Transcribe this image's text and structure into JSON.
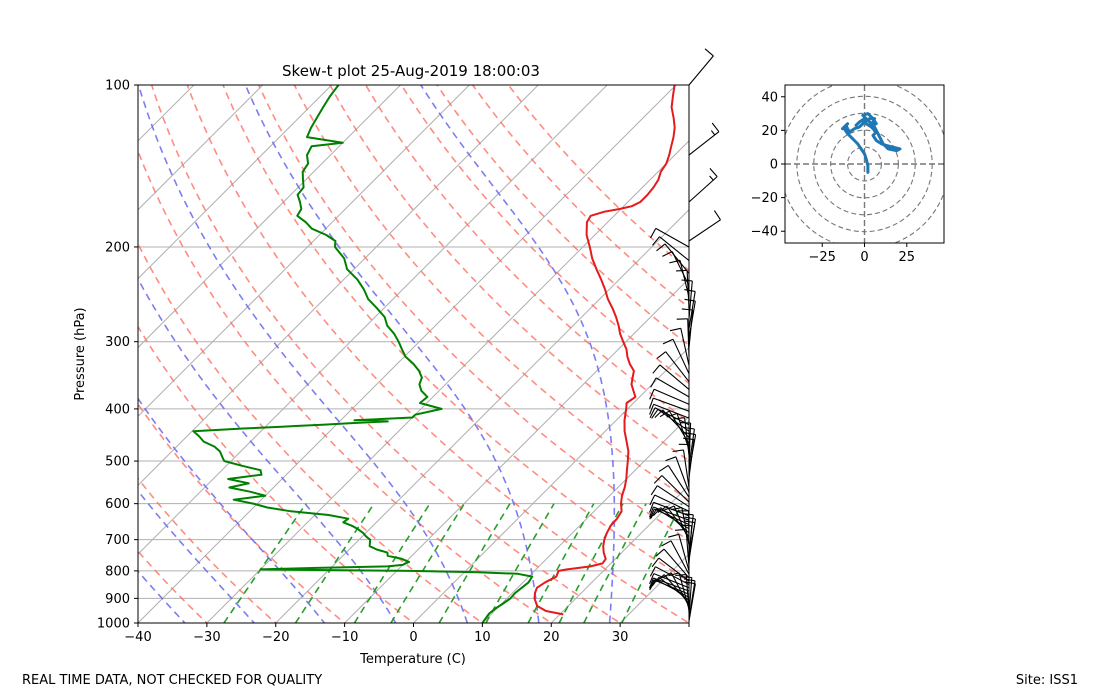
{
  "chart_data": [
    {
      "type": "skew-t",
      "title": "Skew-t plot 25-Aug-2019 18:00:03",
      "xlabel": "Temperature (C)",
      "ylabel": "Pressure (hPa)",
      "xlim": [
        -40,
        40
      ],
      "ylim": [
        1000,
        100
      ],
      "y_scale": "log",
      "x_ticks": [
        -40,
        -30,
        -20,
        -10,
        0,
        10,
        20,
        30
      ],
      "y_ticks": [
        100,
        200,
        300,
        400,
        500,
        600,
        700,
        800,
        900,
        1000
      ],
      "grid": true,
      "skew_degrees": 45,
      "series": [
        {
          "role": "temperature",
          "color": "#e41a1c",
          "points": [
            [
              964,
              20.5
            ],
            [
              950,
              17.5
            ],
            [
              930,
              15.5
            ],
            [
              900,
              14.0
            ],
            [
              880,
              13.3
            ],
            [
              860,
              12.8
            ],
            [
              840,
              13.2
            ],
            [
              820,
              14.0
            ],
            [
              800,
              13.5
            ],
            [
              795,
              14.5
            ],
            [
              785,
              17.5
            ],
            [
              775,
              18.8
            ],
            [
              760,
              18.6
            ],
            [
              740,
              17.4
            ],
            [
              720,
              16.4
            ],
            [
              700,
              15.6
            ],
            [
              680,
              15.0
            ],
            [
              660,
              14.5
            ],
            [
              640,
              14.4
            ],
            [
              620,
              14.0
            ],
            [
              600,
              12.8
            ],
            [
              580,
              11.8
            ],
            [
              560,
              11.0
            ],
            [
              540,
              10.0
            ],
            [
              520,
              8.8
            ],
            [
              500,
              7.6
            ],
            [
              480,
              6.3
            ],
            [
              460,
              4.6
            ],
            [
              440,
              2.8
            ],
            [
              420,
              1.2
            ],
            [
              400,
              -0.2
            ],
            [
              390,
              -1.0
            ],
            [
              380,
              -0.6
            ],
            [
              370,
              -1.8
            ],
            [
              360,
              -3.0
            ],
            [
              350,
              -3.8
            ],
            [
              340,
              -4.6
            ],
            [
              330,
              -6.2
            ],
            [
              320,
              -7.6
            ],
            [
              310,
              -8.8
            ],
            [
              300,
              -10.4
            ],
            [
              290,
              -12.0
            ],
            [
              280,
              -13.4
            ],
            [
              270,
              -15.0
            ],
            [
              260,
              -16.8
            ],
            [
              250,
              -18.8
            ],
            [
              240,
              -20.6
            ],
            [
              230,
              -22.6
            ],
            [
              220,
              -24.8
            ],
            [
              210,
              -27.0
            ],
            [
              200,
              -29.0
            ],
            [
              190,
              -31.2
            ],
            [
              180,
              -33.0
            ],
            [
              175,
              -33.4
            ],
            [
              172,
              -32.0
            ],
            [
              170,
              -30.2
            ],
            [
              168,
              -28.8
            ],
            [
              165,
              -28.2
            ],
            [
              160,
              -28.2
            ],
            [
              155,
              -28.4
            ],
            [
              150,
              -28.8
            ],
            [
              145,
              -29.6
            ],
            [
              140,
              -30.0
            ],
            [
              135,
              -30.8
            ],
            [
              130,
              -31.8
            ],
            [
              125,
              -32.8
            ],
            [
              120,
              -34.0
            ],
            [
              115,
              -35.6
            ],
            [
              110,
              -37.4
            ],
            [
              105,
              -38.8
            ],
            [
              100,
              -40.2
            ]
          ]
        },
        {
          "role": "dewpoint",
          "color": "#008000",
          "points": [
            [
              1000,
              10.0
            ],
            [
              980,
              9.8
            ],
            [
              960,
              9.6
            ],
            [
              940,
              9.8
            ],
            [
              920,
              10.2
            ],
            [
              900,
              10.5
            ],
            [
              880,
              10.4
            ],
            [
              860,
              10.6
            ],
            [
              840,
              10.8
            ],
            [
              820,
              10.5
            ],
            [
              810,
              8.0
            ],
            [
              805,
              2.0
            ],
            [
              800,
              -8.0
            ],
            [
              797,
              -22.0
            ],
            [
              795,
              -30.0
            ],
            [
              790,
              -22.0
            ],
            [
              785,
              -12.0
            ],
            [
              780,
              -10.0
            ],
            [
              770,
              -9.5
            ],
            [
              760,
              -11.0
            ],
            [
              750,
              -13.5
            ],
            [
              740,
              -14.0
            ],
            [
              730,
              -16.0
            ],
            [
              720,
              -17.5
            ],
            [
              700,
              -18.4
            ],
            [
              690,
              -19.5
            ],
            [
              680,
              -20.4
            ],
            [
              670,
              -21.6
            ],
            [
              660,
              -23.0
            ],
            [
              650,
              -24.8
            ],
            [
              640,
              -24.6
            ],
            [
              630,
              -28.0
            ],
            [
              620,
              -34.0
            ],
            [
              610,
              -38.0
            ],
            [
              600,
              -40.6
            ],
            [
              590,
              -44.0
            ],
            [
              580,
              -40.0
            ],
            [
              570,
              -42.8
            ],
            [
              560,
              -46.4
            ],
            [
              550,
              -44.2
            ],
            [
              540,
              -47.8
            ],
            [
              530,
              -43.6
            ],
            [
              520,
              -44.4
            ],
            [
              510,
              -47.8
            ],
            [
              500,
              -51.0
            ],
            [
              490,
              -52.0
            ],
            [
              480,
              -53.0
            ],
            [
              470,
              -54.5
            ],
            [
              460,
              -56.8
            ],
            [
              450,
              -58.2
            ],
            [
              440,
              -59.8
            ],
            [
              435,
              -53.0
            ],
            [
              432,
              -48.0
            ],
            [
              430,
              -45.0
            ],
            [
              428,
              -42.0
            ],
            [
              425,
              -38.0
            ],
            [
              422,
              -33.0
            ],
            [
              420,
              -38.0
            ],
            [
              415,
              -30.0
            ],
            [
              410,
              -30.0
            ],
            [
              400,
              -27.0
            ],
            [
              390,
              -31.0
            ],
            [
              380,
              -30.8
            ],
            [
              370,
              -32.6
            ],
            [
              360,
              -33.8
            ],
            [
              350,
              -34.4
            ],
            [
              340,
              -35.8
            ],
            [
              330,
              -37.6
            ],
            [
              320,
              -39.8
            ],
            [
              310,
              -41.4
            ],
            [
              300,
              -43.0
            ],
            [
              290,
              -44.8
            ],
            [
              280,
              -47.0
            ],
            [
              270,
              -48.6
            ],
            [
              260,
              -51.0
            ],
            [
              250,
              -53.6
            ],
            [
              240,
              -55.6
            ],
            [
              230,
              -58.0
            ],
            [
              220,
              -61.0
            ],
            [
              210,
              -63.0
            ],
            [
              200,
              -66.0
            ],
            [
              195,
              -66.8
            ],
            [
              190,
              -69.0
            ],
            [
              185,
              -72.0
            ],
            [
              180,
              -73.8
            ],
            [
              175,
              -76.0
            ],
            [
              170,
              -76.4
            ],
            [
              165,
              -77.6
            ],
            [
              160,
              -79.0
            ],
            [
              155,
              -79.2
            ],
            [
              150,
              -80.4
            ],
            [
              145,
              -81.6
            ],
            [
              140,
              -82.0
            ],
            [
              135,
              -83.4
            ],
            [
              130,
              -84.0
            ],
            [
              128,
              -80.0
            ],
            [
              125,
              -86.0
            ],
            [
              120,
              -86.8
            ],
            [
              115,
              -87.4
            ],
            [
              110,
              -88.0
            ],
            [
              105,
              -88.6
            ],
            [
              100,
              -89.0
            ]
          ]
        }
      ],
      "overlays": {
        "dry_adiabats_color": "#ff6f61",
        "moist_adiabats_color": "#6666ee",
        "mixing_ratio_color": "#2a9d2a",
        "isotherm_color": "#b0b0b0"
      },
      "wind_barbs_color": "#000000"
    },
    {
      "type": "hodograph",
      "xlim": [
        -47,
        47
      ],
      "ylim": [
        -47,
        47
      ],
      "x_ticks": [
        -25,
        0,
        25
      ],
      "y_ticks": [
        -40,
        -20,
        0,
        20,
        40
      ],
      "rings": [
        10,
        20,
        30,
        40,
        50
      ],
      "color": "#1f77b4",
      "points": [
        [
          2,
          -5
        ],
        [
          2,
          -1
        ],
        [
          1,
          3
        ],
        [
          0,
          6
        ],
        [
          -2,
          9
        ],
        [
          -4,
          12
        ],
        [
          -6,
          14
        ],
        [
          -8,
          16
        ],
        [
          -10,
          18
        ],
        [
          -12,
          21
        ],
        [
          -10,
          24
        ],
        [
          -13,
          21
        ],
        [
          -11,
          23
        ],
        [
          -9,
          19
        ],
        [
          -6,
          21
        ],
        [
          -3,
          22
        ],
        [
          0,
          25
        ],
        [
          3,
          27
        ],
        [
          6,
          27
        ],
        [
          4,
          23
        ],
        [
          7,
          24
        ],
        [
          5,
          27
        ],
        [
          2,
          30
        ],
        [
          -1,
          29
        ],
        [
          3,
          25
        ],
        [
          6,
          22
        ],
        [
          9,
          16
        ],
        [
          11,
          12
        ],
        [
          14,
          9
        ],
        [
          19,
          8
        ],
        [
          21,
          9
        ],
        [
          17,
          10
        ],
        [
          13,
          11
        ],
        [
          10,
          12
        ],
        [
          7,
          14
        ],
        [
          5,
          17
        ],
        [
          7,
          19
        ],
        [
          4,
          22
        ],
        [
          1,
          24
        ],
        [
          0,
          27
        ],
        [
          -3,
          25
        ],
        [
          -5,
          23
        ]
      ]
    }
  ],
  "footer": {
    "left": "REAL TIME DATA, NOT CHECKED FOR QUALITY",
    "right": "Site: ISS1"
  }
}
